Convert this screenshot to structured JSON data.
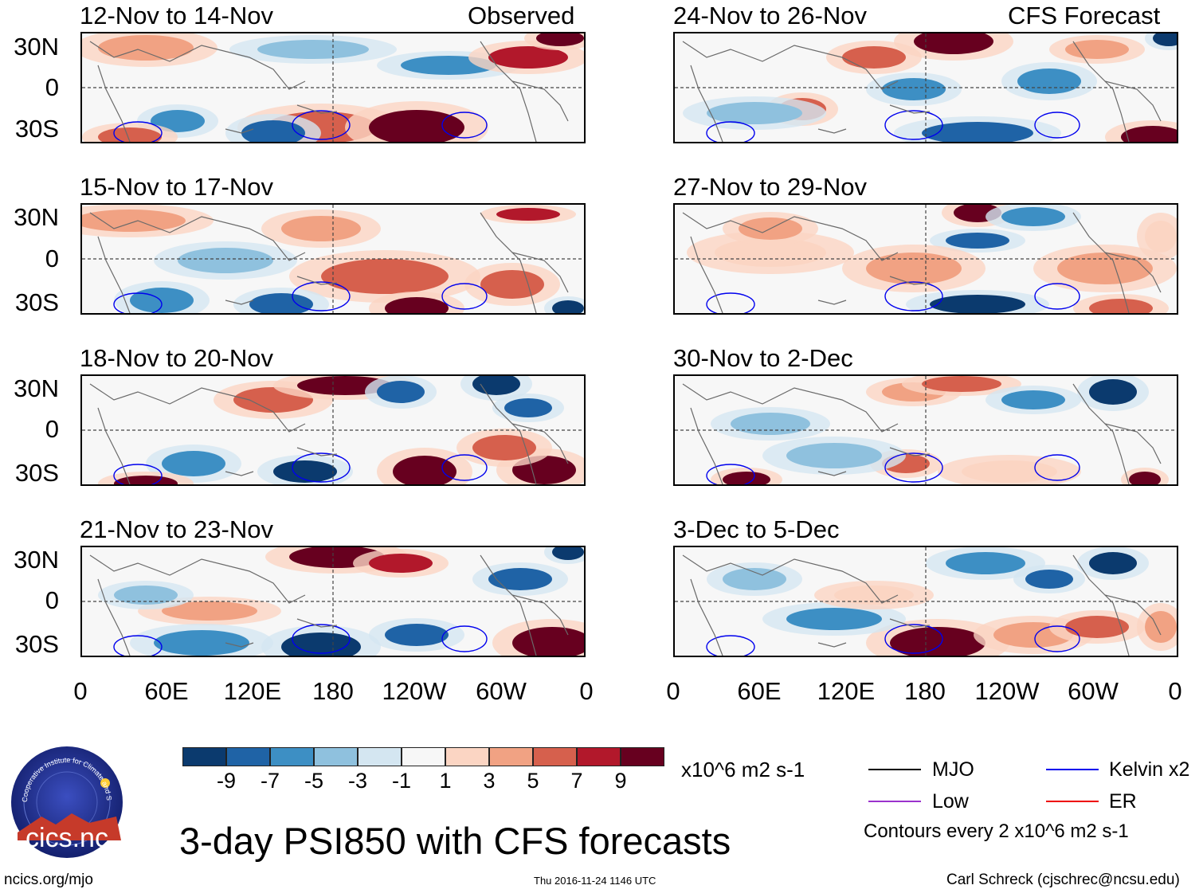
{
  "header": {
    "observed_label": "Observed",
    "forecast_label": "CFS Forecast"
  },
  "observed_panels": [
    {
      "title": "12-Nov to 14-Nov"
    },
    {
      "title": "15-Nov to 17-Nov"
    },
    {
      "title": "18-Nov to 20-Nov"
    },
    {
      "title": "21-Nov to 23-Nov"
    }
  ],
  "forecast_panels": [
    {
      "title": "24-Nov to 26-Nov"
    },
    {
      "title": "27-Nov to 29-Nov"
    },
    {
      "title": "30-Nov to 2-Dec"
    },
    {
      "title": "3-Dec to 5-Dec"
    }
  ],
  "lat_labels": [
    "30N",
    "0",
    "30S"
  ],
  "lon_labels": [
    "0",
    "60E",
    "120E",
    "180",
    "120W",
    "60W",
    "0"
  ],
  "colorbar": {
    "colors": [
      "#0b3a6e",
      "#1f63a6",
      "#3d8fc4",
      "#8fc1de",
      "#d4e6f1",
      "#f7f7f7",
      "#fbd5c3",
      "#f1a283",
      "#d6604d",
      "#b2182b",
      "#67001f"
    ],
    "labels": [
      "-9",
      "-7",
      "-5",
      "-3",
      "-1",
      "1",
      "3",
      "5",
      "7",
      "9"
    ],
    "units": "x10^6 m2 s-1"
  },
  "legend": {
    "items": [
      {
        "label": "MJO",
        "color": "#000000"
      },
      {
        "label": "Kelvin x2",
        "color": "#0000ee"
      },
      {
        "label": "Low",
        "color": "#9a32cd"
      },
      {
        "label": "ER",
        "color": "#ee0000"
      }
    ],
    "contour_note": "Contours every 2 x10^6 m2 s-1"
  },
  "main_title": "3-day PSI850 with CFS forecasts",
  "logo": {
    "text": "cics.nc",
    "ring_text": "Cooperative Institute for Climate and Satellites"
  },
  "footer": {
    "left": "ncics.org/mjo",
    "center": "Thu 2016-11-24 1146 UTC",
    "right": "Carl Schreck (cjschrec@ncsu.edu)"
  }
}
